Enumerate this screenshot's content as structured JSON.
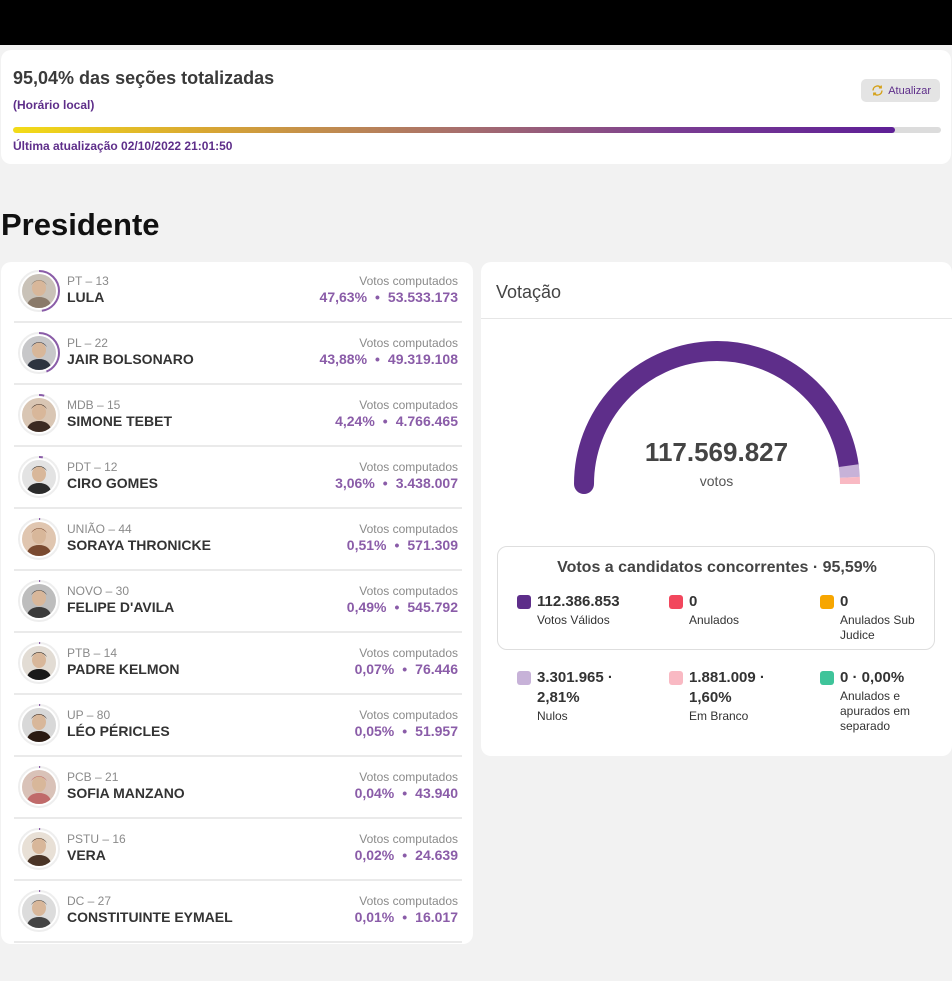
{
  "status": {
    "title": "95,04% das seções totalizadas",
    "subtitle": "(Horário local)",
    "refresh_label": "Atualizar",
    "progress_percent": 95.04,
    "last_update": "Última atualização 02/10/2022 21:01:50"
  },
  "section_title": "Presidente",
  "votes_label": "Votos computados",
  "candidates": [
    {
      "party": "PT – 13",
      "name": "LULA",
      "percent": "47,63%",
      "votes": "53.533.173",
      "share": 0.4763
    },
    {
      "party": "PL – 22",
      "name": "JAIR BOLSONARO",
      "percent": "43,88%",
      "votes": "49.319.108",
      "share": 0.4388
    },
    {
      "party": "MDB – 15",
      "name": "SIMONE TEBET",
      "percent": "4,24%",
      "votes": "4.766.465",
      "share": 0.0424
    },
    {
      "party": "PDT – 12",
      "name": "CIRO GOMES",
      "percent": "3,06%",
      "votes": "3.438.007",
      "share": 0.0306
    },
    {
      "party": "UNIÃO – 44",
      "name": "SORAYA THRONICKE",
      "percent": "0,51%",
      "votes": "571.309",
      "share": 0.0051
    },
    {
      "party": "NOVO – 30",
      "name": "FELIPE D'AVILA",
      "percent": "0,49%",
      "votes": "545.792",
      "share": 0.0049
    },
    {
      "party": "PTB – 14",
      "name": "PADRE KELMON",
      "percent": "0,07%",
      "votes": "76.446",
      "share": 0.0007
    },
    {
      "party": "UP – 80",
      "name": "LÉO PÉRICLES",
      "percent": "0,05%",
      "votes": "51.957",
      "share": 0.0005
    },
    {
      "party": "PCB – 21",
      "name": "SOFIA MANZANO",
      "percent": "0,04%",
      "votes": "43.940",
      "share": 0.0004
    },
    {
      "party": "PSTU – 16",
      "name": "VERA",
      "percent": "0,02%",
      "votes": "24.639",
      "share": 0.0002
    },
    {
      "party": "DC – 27",
      "name": "CONSTITUINTE EYMAEL",
      "percent": "0,01%",
      "votes": "16.017",
      "share": 0.0001
    }
  ],
  "votacao": {
    "title": "Votação",
    "total": "117.569.827",
    "total_unit": "votos",
    "concorrentes_title": "Votos a candidatos concorrentes · 95,59%",
    "stats": [
      {
        "value": "112.386.853",
        "label": "Votos Válidos",
        "color": "#5e2e8a"
      },
      {
        "value": "0",
        "label": "Anulados",
        "color": "#f2475d"
      },
      {
        "value": "0",
        "label": "Anulados Sub Judice",
        "color": "#f7a600"
      },
      {
        "value": "3.301.965 · 2,81%",
        "label": "Nulos",
        "color": "#c7b2d8"
      },
      {
        "value": "1.881.009 · 1,60%",
        "label": "Em Branco",
        "color": "#f9b9c3"
      },
      {
        "value": "0 · 0,00%",
        "label": "Anulados e apurados em separado",
        "color": "#3fc49a"
      }
    ]
  },
  "colors": {
    "accent": "#5e2e8a",
    "vote_value": "#8a5ca8"
  }
}
